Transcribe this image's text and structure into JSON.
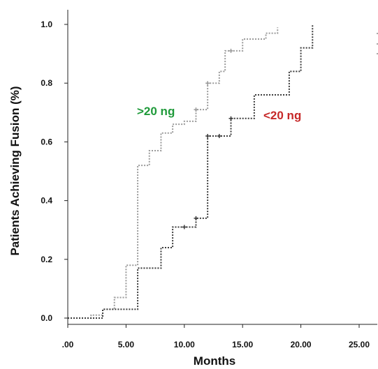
{
  "chart_data": {
    "type": "line",
    "subtype": "kaplan-meier-step",
    "title": "",
    "xlabel": "Months",
    "ylabel": "Patients Achieving Fusion (%)",
    "xlim": [
      0,
      25
    ],
    "ylim": [
      0,
      1
    ],
    "x_ticks": [
      0,
      5,
      10,
      15,
      20,
      25
    ],
    "x_tick_labels": [
      ".00",
      "5.00",
      "10.00",
      "15.00",
      "20.00",
      "25.00"
    ],
    "y_ticks": [
      0,
      0.2,
      0.4,
      0.6,
      0.8,
      1.0
    ],
    "y_tick_labels": [
      "0.0",
      "0.2",
      "0.4",
      "0.6",
      "0.8",
      "1.0"
    ],
    "grid": false,
    "series": [
      {
        "name": ">20 ng",
        "color": "#9a9a9a",
        "line_style": "dotted",
        "label_color": "#1f9a3a",
        "steps": [
          {
            "x": 0,
            "y": 0.0
          },
          {
            "x": 2,
            "y": 0.01
          },
          {
            "x": 3,
            "y": 0.03
          },
          {
            "x": 4,
            "y": 0.07
          },
          {
            "x": 5,
            "y": 0.18
          },
          {
            "x": 6,
            "y": 0.52
          },
          {
            "x": 7,
            "y": 0.57
          },
          {
            "x": 8,
            "y": 0.63
          },
          {
            "x": 9,
            "y": 0.66
          },
          {
            "x": 10,
            "y": 0.67
          },
          {
            "x": 11,
            "y": 0.71
          },
          {
            "x": 12,
            "y": 0.8
          },
          {
            "x": 13,
            "y": 0.84
          },
          {
            "x": 13.5,
            "y": 0.91
          },
          {
            "x": 15,
            "y": 0.95
          },
          {
            "x": 17,
            "y": 0.97
          },
          {
            "x": 18,
            "y": 0.99
          }
        ],
        "end_x": 18,
        "censored": [
          {
            "x": 11,
            "y": 0.71
          },
          {
            "x": 12,
            "y": 0.8
          },
          {
            "x": 14,
            "y": 0.91
          }
        ]
      },
      {
        "name": "<20 ng",
        "color": "#3a3a3a",
        "line_style": "dotted",
        "label_color": "#c62828",
        "steps": [
          {
            "x": 0,
            "y": 0.0
          },
          {
            "x": 3,
            "y": 0.03
          },
          {
            "x": 6,
            "y": 0.17
          },
          {
            "x": 8,
            "y": 0.24
          },
          {
            "x": 9,
            "y": 0.31
          },
          {
            "x": 11,
            "y": 0.34
          },
          {
            "x": 12,
            "y": 0.62
          },
          {
            "x": 14,
            "y": 0.68
          },
          {
            "x": 16,
            "y": 0.76
          },
          {
            "x": 19,
            "y": 0.84
          },
          {
            "x": 20,
            "y": 0.92
          },
          {
            "x": 21,
            "y": 1.0
          }
        ],
        "end_x": 21,
        "censored": [
          {
            "x": 10,
            "y": 0.31
          },
          {
            "x": 11,
            "y": 0.34
          },
          {
            "x": 12,
            "y": 0.62
          },
          {
            "x": 13,
            "y": 0.62
          },
          {
            "x": 14,
            "y": 0.68
          }
        ]
      }
    ],
    "annotations": [
      {
        "text": ">20 ng",
        "series": 0
      },
      {
        "text": "<20 ng",
        "series": 1
      }
    ]
  }
}
